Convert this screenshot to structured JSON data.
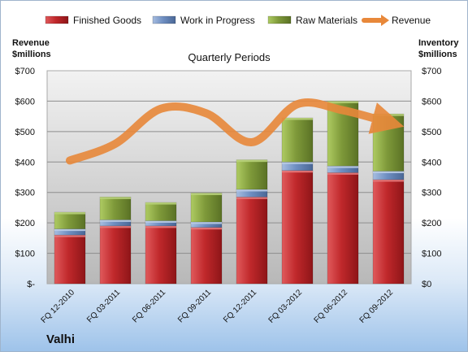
{
  "company": "Valhi",
  "chart_data": {
    "type": "bar",
    "title": "Quarterly Periods",
    "left_axis_label": "Revenue\n$millions",
    "right_axis_label": "Inventory\n$millions",
    "categories": [
      "FQ 12-2010",
      "FQ 03-2011",
      "FQ 06-2011",
      "FQ 09-2011",
      "FQ 12-2011",
      "FQ 03-2012",
      "FQ 06-2012",
      "FQ 09-2012"
    ],
    "ylim": [
      0,
      700
    ],
    "y_ticks": [
      0,
      100,
      200,
      300,
      400,
      500,
      600,
      700
    ],
    "left_tick_labels": [
      "$-",
      "$100",
      "$200",
      "$300",
      "$400",
      "$500",
      "$600",
      "$700"
    ],
    "right_tick_labels": [
      "$0",
      "$100",
      "$200",
      "$300",
      "$400",
      "$500",
      "$600",
      "$700"
    ],
    "stacked": true,
    "series": [
      {
        "name": "Finished Goods",
        "kind": "bar",
        "color": "#c0282b",
        "values": [
          160,
          190,
          190,
          185,
          285,
          372,
          365,
          342
        ]
      },
      {
        "name": "Work in Progress",
        "kind": "bar",
        "color": "#6f8fc2",
        "values": [
          20,
          20,
          17,
          18,
          25,
          28,
          22,
          28
        ]
      },
      {
        "name": "Raw Materials",
        "kind": "bar",
        "color": "#7f9a3a",
        "values": [
          55,
          75,
          60,
          95,
          97,
          145,
          213,
          188
        ]
      },
      {
        "name": "Revenue",
        "kind": "line",
        "color": "#e8883a",
        "values": [
          405,
          460,
          575,
          560,
          465,
          590,
          570,
          530
        ]
      }
    ],
    "legend_position": "top",
    "grid": true
  }
}
